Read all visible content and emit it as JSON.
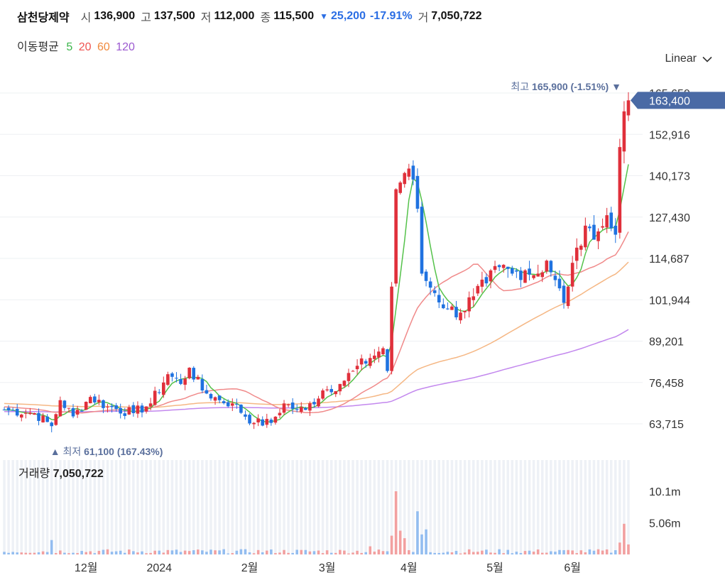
{
  "header": {
    "name": "삼천당제약",
    "open_label": "시",
    "open": "136,900",
    "high_label": "고",
    "high": "137,500",
    "low_label": "저",
    "low": "112,000",
    "close_label": "종",
    "close": "115,500",
    "change_arrow": "▼",
    "change": "25,200",
    "change_pct": "-17.91%",
    "volume_label": "거",
    "volume": "7,050,722"
  },
  "ma_legend": {
    "label": "이동평균",
    "items": [
      {
        "label": "5",
        "color": "#3bb54a"
      },
      {
        "label": "20",
        "color": "#ef5350"
      },
      {
        "label": "60",
        "color": "#f08a3e"
      },
      {
        "label": "120",
        "color": "#9b59d0"
      }
    ]
  },
  "scale_dropdown": {
    "label": "Linear",
    "icon": "chevron-down-icon"
  },
  "chart_data": {
    "type": "candlestick",
    "colors": {
      "up": "#e0303b",
      "down": "#1f72e0",
      "ma5": "#54c24a",
      "ma20": "#f08a8a",
      "ma60": "#f5b784",
      "ma120": "#c388ee",
      "volume_up": "#f2a0a0",
      "volume_down": "#93bdf0"
    },
    "y_ticks": [
      "165,659",
      "152,916",
      "140,173",
      "127,430",
      "114,687",
      "101,944",
      "89,201",
      "76,458",
      "63,715"
    ],
    "y_tick_values": [
      165659,
      152916,
      140173,
      127430,
      114687,
      101944,
      89201,
      76458,
      63715
    ],
    "ylim": [
      57300,
      171800
    ],
    "x_ticks": [
      {
        "label": "12월",
        "index": 19
      },
      {
        "label": "2024",
        "index": 36
      },
      {
        "label": "2월",
        "index": 57
      },
      {
        "label": "3월",
        "index": 75
      },
      {
        "label": "4월",
        "index": 94
      },
      {
        "label": "5월",
        "index": 114
      },
      {
        "label": "6월",
        "index": 132
      }
    ],
    "keypoints": [
      {
        "i": 0,
        "c": 68000
      },
      {
        "i": 7,
        "c": 67000
      },
      {
        "i": 11,
        "c": 63000
      },
      {
        "i": 13,
        "c": 71000
      },
      {
        "i": 16,
        "c": 66000
      },
      {
        "i": 20,
        "c": 72000
      },
      {
        "i": 24,
        "c": 69000
      },
      {
        "i": 30,
        "c": 67000
      },
      {
        "i": 34,
        "c": 70000
      },
      {
        "i": 38,
        "c": 79000
      },
      {
        "i": 41,
        "c": 76000
      },
      {
        "i": 43,
        "c": 81000
      },
      {
        "i": 46,
        "c": 74000
      },
      {
        "i": 50,
        "c": 71000
      },
      {
        "i": 53,
        "c": 70000
      },
      {
        "i": 58,
        "c": 64000
      },
      {
        "i": 62,
        "c": 64000
      },
      {
        "i": 65,
        "c": 70000
      },
      {
        "i": 68,
        "c": 68000
      },
      {
        "i": 70,
        "c": 68000
      },
      {
        "i": 74,
        "c": 74000
      },
      {
        "i": 78,
        "c": 76000
      },
      {
        "i": 81,
        "c": 80000
      },
      {
        "i": 85,
        "c": 84000
      },
      {
        "i": 88,
        "c": 87000
      },
      {
        "i": 89,
        "c": 80000
      },
      {
        "i": 90,
        "c": 106000
      },
      {
        "i": 91,
        "c": 136000
      },
      {
        "i": 93,
        "c": 141000
      },
      {
        "i": 95,
        "c": 139000
      },
      {
        "i": 96,
        "c": 130000
      },
      {
        "i": 97,
        "c": 110000
      },
      {
        "i": 100,
        "c": 104000
      },
      {
        "i": 103,
        "c": 99000
      },
      {
        "i": 106,
        "c": 98000
      },
      {
        "i": 109,
        "c": 103000
      },
      {
        "i": 112,
        "c": 107000
      },
      {
        "i": 115,
        "c": 112000
      },
      {
        "i": 118,
        "c": 110000
      },
      {
        "i": 121,
        "c": 111000
      },
      {
        "i": 124,
        "c": 110000
      },
      {
        "i": 126,
        "c": 114000
      },
      {
        "i": 128,
        "c": 108000
      },
      {
        "i": 130,
        "c": 101000
      },
      {
        "i": 131,
        "c": 106000
      },
      {
        "i": 133,
        "c": 118000
      },
      {
        "i": 136,
        "c": 124000
      },
      {
        "i": 138,
        "c": 123000
      },
      {
        "i": 140,
        "c": 128000
      },
      {
        "i": 141,
        "c": 124000
      },
      {
        "i": 142,
        "c": 122000
      },
      {
        "i": 143,
        "c": 149000
      },
      {
        "i": 144,
        "c": 160000
      },
      {
        "i": 145,
        "c": 163400
      }
    ],
    "candles_total": 146,
    "last_close": 163400,
    "last_close_label": "163,400",
    "max": {
      "prefix": "최고",
      "value": "165,900",
      "pct": "(-1.51%)",
      "arrow": "▼",
      "index": 145,
      "price": 165900
    },
    "min": {
      "prefix": "최저",
      "value": "61,100",
      "pct": "(167.43%)",
      "arrow": "▲",
      "index": 11,
      "price": 61100
    },
    "volume": {
      "label": "거래량",
      "value": "7,050,722",
      "ticks": [
        "10.1m",
        "5.06m"
      ],
      "tick_values": [
        10100000,
        5060000
      ],
      "spikes": [
        {
          "i": 11,
          "v": 2300000
        },
        {
          "i": 85,
          "v": 1300000
        },
        {
          "i": 90,
          "v": 3000000
        },
        {
          "i": 91,
          "v": 10100000
        },
        {
          "i": 92,
          "v": 3800000
        },
        {
          "i": 93,
          "v": 2600000
        },
        {
          "i": 96,
          "v": 6900000
        },
        {
          "i": 97,
          "v": 3200000
        },
        {
          "i": 98,
          "v": 4000000
        },
        {
          "i": 143,
          "v": 1900000
        },
        {
          "i": 144,
          "v": 4900000
        },
        {
          "i": 145,
          "v": 1600000
        }
      ]
    }
  }
}
